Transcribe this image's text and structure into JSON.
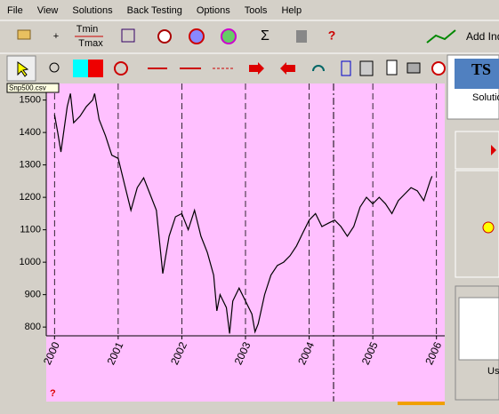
{
  "menu": [
    "File",
    "View",
    "Solutions",
    "Back Testing",
    "Options",
    "Tools",
    "Help"
  ],
  "toolbar": {
    "tmin": "Tmin",
    "tmax": "Tmax",
    "plus": "+",
    "sigma": "Σ",
    "help": "?",
    "add": "Add Ind"
  },
  "tooltip": "Snp500.csv",
  "side_panel": {
    "logo": "TS",
    "solution": "Solution",
    "us": "Us"
  },
  "status_help": "?",
  "chart_data": {
    "type": "line",
    "color": "#000000",
    "background": "#ffc0ff",
    "grid": true,
    "x": [
      2000.0,
      2000.05,
      2000.1,
      2000.2,
      2000.25,
      2000.3,
      2000.4,
      2000.5,
      2000.6,
      2000.63,
      2000.7,
      2000.8,
      2000.9,
      2001.0,
      2001.1,
      2001.2,
      2001.3,
      2001.4,
      2001.5,
      2001.6,
      2001.7,
      2001.8,
      2001.9,
      2002.0,
      2002.1,
      2002.2,
      2002.3,
      2002.4,
      2002.5,
      2002.55,
      2002.6,
      2002.7,
      2002.75,
      2002.8,
      2002.9,
      2003.0,
      2003.1,
      2003.15,
      2003.2,
      2003.3,
      2003.4,
      2003.5,
      2003.6,
      2003.7,
      2003.8,
      2003.9,
      2004.0,
      2004.1,
      2004.2,
      2004.3,
      2004.4,
      2004.5,
      2004.6,
      2004.7,
      2004.8,
      2004.9,
      2005.0,
      2005.1,
      2005.2,
      2005.3,
      2005.4,
      2005.5,
      2005.6,
      2005.7,
      2005.8,
      2005.9,
      2005.93
    ],
    "values": [
      1455,
      1400,
      1340,
      1480,
      1520,
      1430,
      1450,
      1480,
      1500,
      1520,
      1440,
      1390,
      1330,
      1320,
      1240,
      1160,
      1230,
      1260,
      1210,
      1160,
      965,
      1080,
      1140,
      1150,
      1100,
      1160,
      1080,
      1030,
      960,
      850,
      900,
      860,
      780,
      880,
      920,
      880,
      840,
      785,
      810,
      900,
      960,
      990,
      1000,
      1020,
      1050,
      1090,
      1130,
      1150,
      1110,
      1120,
      1130,
      1110,
      1080,
      1110,
      1170,
      1200,
      1180,
      1200,
      1180,
      1150,
      1190,
      1210,
      1230,
      1220,
      1190,
      1250,
      1265
    ],
    "xlim": [
      1999.87,
      2006.13
    ],
    "ylim": [
      773,
      1551
    ],
    "xticks": [
      2000,
      2001,
      2002,
      2003,
      2004,
      2005,
      2006
    ],
    "yticks": [
      800,
      900,
      1000,
      1100,
      1200,
      1300,
      1400,
      1500
    ]
  }
}
